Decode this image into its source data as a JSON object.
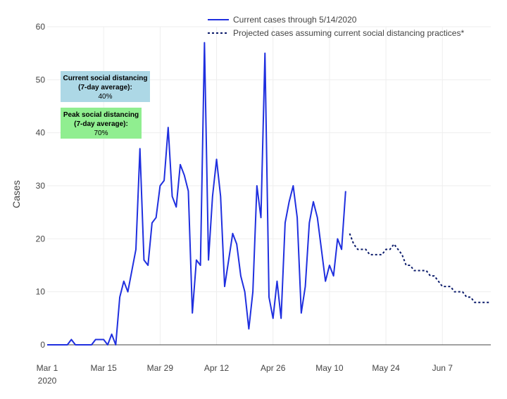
{
  "chart_data": {
    "type": "line",
    "ylabel": "Cases",
    "ylim": [
      0,
      60
    ],
    "y_ticks": [
      0,
      10,
      20,
      30,
      40,
      50,
      60
    ],
    "x_range": [
      "2020-03-01",
      "2020-06-19"
    ],
    "x_ticks": [
      {
        "date": "2020-03-01",
        "label": "Mar 1",
        "sublabel": "2020"
      },
      {
        "date": "2020-03-15",
        "label": "Mar 15",
        "sublabel": ""
      },
      {
        "date": "2020-03-29",
        "label": "Mar 29",
        "sublabel": ""
      },
      {
        "date": "2020-04-12",
        "label": "Apr 12",
        "sublabel": ""
      },
      {
        "date": "2020-04-26",
        "label": "Apr 26",
        "sublabel": ""
      },
      {
        "date": "2020-05-10",
        "label": "May 10",
        "sublabel": ""
      },
      {
        "date": "2020-05-24",
        "label": "May 24",
        "sublabel": ""
      },
      {
        "date": "2020-06-07",
        "label": "Jun 7",
        "sublabel": ""
      }
    ],
    "grid": true,
    "legend_position": "top-right",
    "colors": {
      "series": "#1f2fdf",
      "projection": "#0a1a6a",
      "grid": "#eeeeee",
      "axis": "#444444"
    },
    "series": [
      {
        "name": "Current cases through 5/14/2020",
        "style": "solid",
        "x": [
          "2020-03-01",
          "2020-03-02",
          "2020-03-03",
          "2020-03-04",
          "2020-03-05",
          "2020-03-06",
          "2020-03-07",
          "2020-03-08",
          "2020-03-09",
          "2020-03-10",
          "2020-03-11",
          "2020-03-12",
          "2020-03-13",
          "2020-03-14",
          "2020-03-15",
          "2020-03-16",
          "2020-03-17",
          "2020-03-18",
          "2020-03-19",
          "2020-03-20",
          "2020-03-21",
          "2020-03-22",
          "2020-03-23",
          "2020-03-24",
          "2020-03-25",
          "2020-03-26",
          "2020-03-27",
          "2020-03-28",
          "2020-03-29",
          "2020-03-30",
          "2020-03-31",
          "2020-04-01",
          "2020-04-02",
          "2020-04-03",
          "2020-04-04",
          "2020-04-05",
          "2020-04-06",
          "2020-04-07",
          "2020-04-08",
          "2020-04-09",
          "2020-04-10",
          "2020-04-11",
          "2020-04-12",
          "2020-04-13",
          "2020-04-14",
          "2020-04-15",
          "2020-04-16",
          "2020-04-17",
          "2020-04-18",
          "2020-04-19",
          "2020-04-20",
          "2020-04-21",
          "2020-04-22",
          "2020-04-23",
          "2020-04-24",
          "2020-04-25",
          "2020-04-26",
          "2020-04-27",
          "2020-04-28",
          "2020-04-29",
          "2020-04-30",
          "2020-05-01",
          "2020-05-02",
          "2020-05-03",
          "2020-05-04",
          "2020-05-05",
          "2020-05-06",
          "2020-05-07",
          "2020-05-08",
          "2020-05-09",
          "2020-05-10",
          "2020-05-11",
          "2020-05-12",
          "2020-05-13",
          "2020-05-14"
        ],
        "values": [
          0,
          0,
          0,
          0,
          0,
          0,
          1,
          0,
          0,
          0,
          0,
          0,
          1,
          1,
          1,
          0,
          2,
          0,
          9,
          12,
          10,
          14,
          18,
          37,
          16,
          15,
          23,
          24,
          30,
          31,
          41,
          28,
          26,
          34,
          32,
          29,
          6,
          16,
          15,
          57,
          16,
          28,
          35,
          28,
          11,
          16,
          21,
          19,
          13,
          10,
          3,
          10,
          30,
          24,
          55,
          9,
          5,
          12,
          5,
          23,
          27,
          30,
          24,
          6,
          11,
          23,
          27,
          24,
          18,
          12,
          15,
          13,
          20,
          18,
          29
        ]
      },
      {
        "name": "Projected cases assuming current social distancing practices*",
        "style": "dotted",
        "x": [
          "2020-05-15",
          "2020-05-16",
          "2020-05-17",
          "2020-05-18",
          "2020-05-19",
          "2020-05-20",
          "2020-05-21",
          "2020-05-22",
          "2020-05-23",
          "2020-05-24",
          "2020-05-25",
          "2020-05-26",
          "2020-05-27",
          "2020-05-28",
          "2020-05-29",
          "2020-05-30",
          "2020-05-31",
          "2020-06-01",
          "2020-06-02",
          "2020-06-03",
          "2020-06-04",
          "2020-06-05",
          "2020-06-06",
          "2020-06-07",
          "2020-06-08",
          "2020-06-09",
          "2020-06-10",
          "2020-06-11",
          "2020-06-12",
          "2020-06-13",
          "2020-06-14",
          "2020-06-15",
          "2020-06-16",
          "2020-06-17",
          "2020-06-18",
          "2020-06-19"
        ],
        "values": [
          21,
          19,
          18,
          18,
          18,
          17,
          17,
          17,
          17,
          18,
          18,
          19,
          18,
          17,
          15,
          15,
          14,
          14,
          14,
          14,
          13,
          13,
          12,
          11,
          11,
          11,
          10,
          10,
          10,
          9,
          9,
          8,
          8,
          8,
          8,
          8
        ]
      }
    ],
    "annotations": [
      {
        "id": "current",
        "lines": [
          "Current social distancing",
          "(7-day average):",
          "40%"
        ],
        "bg": "#add8e6"
      },
      {
        "id": "peak",
        "lines": [
          "Peak social distancing",
          "(7-day average):",
          "70%"
        ],
        "bg": "#90ee90"
      }
    ]
  }
}
